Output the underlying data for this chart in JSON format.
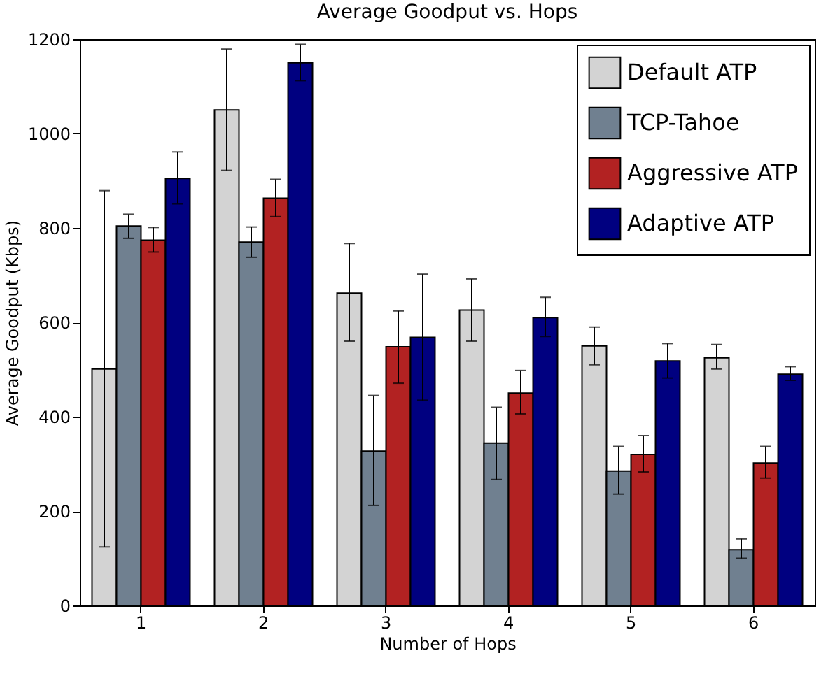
{
  "chart_data": {
    "type": "bar",
    "title": "Average Goodput vs. Hops",
    "xlabel": "Number of Hops",
    "ylabel": "Average Goodput (Kbps)",
    "categories": [
      "1",
      "2",
      "3",
      "4",
      "5",
      "6"
    ],
    "series": [
      {
        "name": "Default ATP",
        "color": "#d3d3d3",
        "values": [
          501,
          1050,
          662,
          626,
          550,
          525
        ],
        "errors": [
          [
            124,
            879
          ],
          [
            922,
            1179
          ],
          [
            560,
            767
          ],
          [
            560,
            692
          ],
          [
            510,
            590
          ],
          [
            501,
            553
          ]
        ]
      },
      {
        "name": "TCP-Tahoe",
        "color": "#708090",
        "values": [
          804,
          770,
          327,
          344,
          285,
          118
        ],
        "errors": [
          [
            778,
            829
          ],
          [
            738,
            802
          ],
          [
            212,
            445
          ],
          [
            267,
            420
          ],
          [
            236,
            337
          ],
          [
            100,
            141
          ]
        ]
      },
      {
        "name": "Aggressive ATP",
        "color": "#b22222",
        "values": [
          774,
          863,
          548,
          450,
          320,
          302
        ],
        "errors": [
          [
            749,
            801
          ],
          [
            824,
            903
          ],
          [
            471,
            624
          ],
          [
            406,
            498
          ],
          [
            283,
            360
          ],
          [
            270,
            337
          ]
        ]
      },
      {
        "name": "Adaptive ATP",
        "color": "#000080",
        "values": [
          905,
          1150,
          568,
          610,
          518,
          490
        ],
        "errors": [
          [
            851,
            961
          ],
          [
            1112,
            1189
          ],
          [
            435,
            702
          ],
          [
            570,
            653
          ],
          [
            482,
            555
          ],
          [
            477,
            506
          ]
        ]
      }
    ],
    "ylim": [
      0,
      1200
    ],
    "yticks": [
      0,
      200,
      400,
      600,
      800,
      1000,
      1200
    ],
    "grid": false,
    "legend": "top right"
  }
}
